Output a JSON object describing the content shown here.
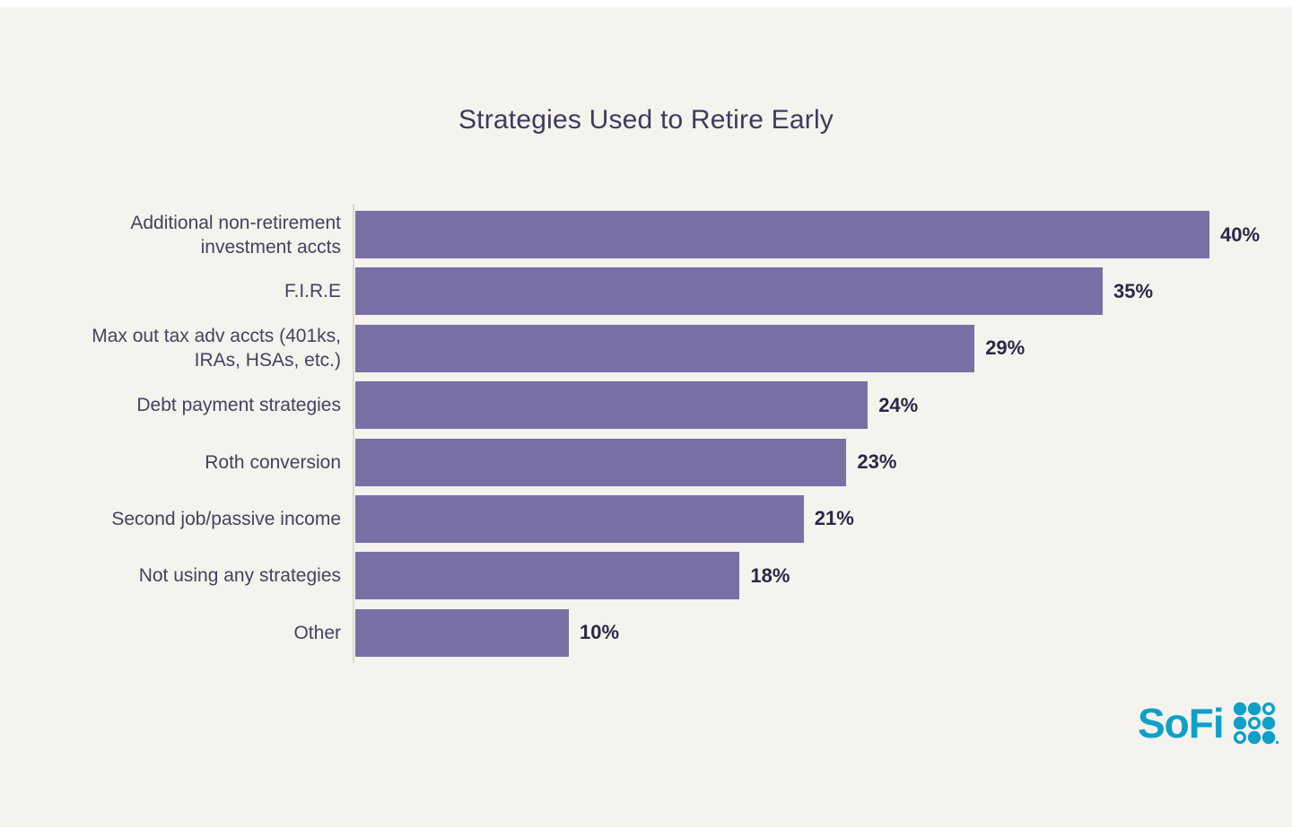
{
  "title": "Strategies Used to Retire Early",
  "chart_data": {
    "type": "bar",
    "orientation": "horizontal",
    "title": "Strategies Used to Retire Early",
    "categories": [
      "Additional non-retirement investment accts",
      "F.I.R.E",
      "Max out tax adv accts (401ks, IRAs, HSAs, etc.)",
      "Debt payment strategies",
      "Roth conversion",
      "Second job/passive income",
      "Not using any strategies",
      "Other"
    ],
    "display_labels": [
      "Additional non-retirement\ninvestment accts",
      "F.I.R.E",
      "Max out tax adv accts (401ks,\nIRAs, HSAs, etc.)",
      "Debt payment strategies",
      "Roth conversion",
      "Second job/passive income",
      "Not using any strategies",
      "Other"
    ],
    "values": [
      40,
      35,
      29,
      24,
      23,
      21,
      18,
      10
    ],
    "value_labels": [
      "40%",
      "35%",
      "29%",
      "24%",
      "23%",
      "21%",
      "18%",
      "10%"
    ],
    "xlabel": "",
    "ylabel": "",
    "xlim": [
      0,
      42
    ],
    "grid": false,
    "legend": "none",
    "bar_color": "#7970A5"
  },
  "branding": {
    "logo_text": "SoFi",
    "logo_color": "#0FA0C8",
    "logo_dot_pattern": [
      [
        1,
        1,
        0
      ],
      [
        1,
        0,
        1
      ],
      [
        0,
        1,
        1
      ]
    ]
  },
  "colors": {
    "background": "#F5F3ED",
    "bar": "#7970A5",
    "title_text": "#3E3A5F",
    "label_text": "#46415F",
    "value_text": "#2B2747",
    "axis_line": "#DCD9D2",
    "logo_teal": "#0FA0C8"
  }
}
